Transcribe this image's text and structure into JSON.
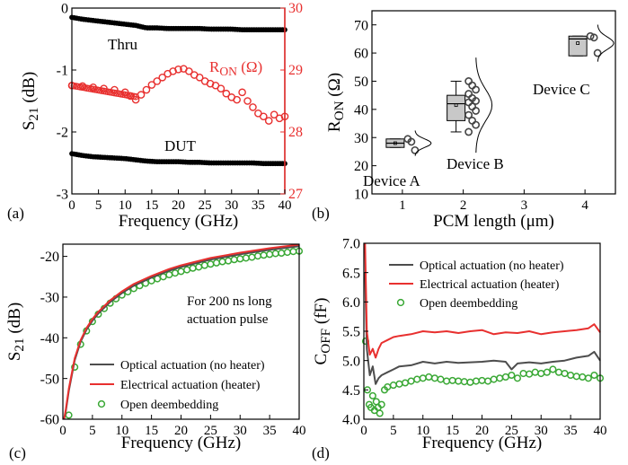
{
  "figure_colors": {
    "black": "#000000",
    "red": "#e8302f",
    "gray": "#4d4d4d",
    "green": "#3aa835",
    "box_fill": "#c8c8c8"
  },
  "chart_data": [
    {
      "panel": "(a)",
      "type": "scatter",
      "xlabel": "Frequency (GHz)",
      "ylabel": "S21 (dB)",
      "y2label": "RON (Ω)",
      "xlim": [
        0,
        40
      ],
      "ylim": [
        -3,
        0
      ],
      "y2lim": [
        27,
        30
      ],
      "xticks": [
        0,
        5,
        10,
        15,
        20,
        25,
        30,
        35,
        40
      ],
      "yticks": [
        0,
        -1,
        -2,
        -3
      ],
      "y2ticks": [
        27,
        28,
        29,
        30
      ],
      "annotations": [
        "Thru",
        "DUT"
      ],
      "series": [
        {
          "name": "Thru",
          "axis": "left",
          "color": "#000000",
          "x": [
            0,
            2,
            4,
            6,
            8,
            10,
            12,
            13,
            14,
            16,
            18,
            20,
            22,
            24,
            26,
            28,
            30,
            32,
            34,
            36,
            38,
            40
          ],
          "y": [
            -0.15,
            -0.18,
            -0.2,
            -0.22,
            -0.24,
            -0.26,
            -0.28,
            -0.3,
            -0.32,
            -0.32,
            -0.33,
            -0.33,
            -0.33,
            -0.33,
            -0.34,
            -0.34,
            -0.34,
            -0.35,
            -0.35,
            -0.35,
            -0.35,
            -0.35
          ]
        },
        {
          "name": "DUT",
          "axis": "left",
          "color": "#000000",
          "x": [
            0,
            2,
            4,
            6,
            8,
            10,
            12,
            14,
            16,
            18,
            20,
            22,
            24,
            26,
            28,
            30,
            32,
            34,
            36,
            38,
            40
          ],
          "y": [
            -2.35,
            -2.38,
            -2.4,
            -2.41,
            -2.42,
            -2.43,
            -2.45,
            -2.47,
            -2.48,
            -2.48,
            -2.48,
            -2.49,
            -2.49,
            -2.5,
            -2.5,
            -2.5,
            -2.5,
            -2.5,
            -2.51,
            -2.51,
            -2.51
          ]
        },
        {
          "name": "RON",
          "axis": "right",
          "color": "#e8302f",
          "x": [
            0,
            2,
            4,
            6,
            8,
            10,
            11,
            12,
            13,
            14,
            15,
            16,
            17,
            18,
            19,
            20,
            21,
            22,
            23,
            24,
            25,
            26,
            27,
            28,
            29,
            30,
            31,
            32,
            33,
            34,
            35,
            36,
            37,
            38,
            39,
            40
          ],
          "y": [
            28.75,
            28.74,
            28.72,
            28.7,
            28.68,
            28.64,
            28.58,
            28.52,
            28.6,
            28.68,
            28.76,
            28.82,
            28.88,
            28.94,
            28.98,
            29.01,
            29.02,
            28.98,
            28.92,
            28.88,
            28.82,
            28.78,
            28.75,
            28.7,
            28.62,
            28.56,
            28.52,
            28.64,
            28.5,
            28.4,
            28.3,
            28.25,
            28.18,
            28.28,
            28.22,
            28.25
          ]
        }
      ],
      "y2label_color": "#e8302f"
    },
    {
      "panel": "(b)",
      "type": "box",
      "xlabel": "PCM length (μm)",
      "ylabel": "RON (Ω)",
      "xlim": [
        0.5,
        4.5
      ],
      "ylim": [
        10,
        75
      ],
      "xticks": [
        1,
        2,
        3,
        4
      ],
      "yticks": [
        10,
        20,
        30,
        40,
        50,
        60,
        70
      ],
      "groups": [
        {
          "name": "Device A",
          "x": 1,
          "q1": 26.5,
          "median": 28,
          "q3": 29.5,
          "mean": 28,
          "whisker_low": 26.5,
          "whisker_high": 29.5,
          "points": [
            29.5,
            28.5,
            25.5
          ]
        },
        {
          "name": "Device B",
          "x": 2,
          "q1": 36,
          "median": 42,
          "q3": 45,
          "mean": 41.5,
          "whisker_low": 32,
          "whisker_high": 50,
          "points": [
            50,
            48.5,
            47,
            45.5,
            44,
            43,
            42.5,
            41,
            39.5,
            38,
            36,
            34.5,
            32
          ]
        },
        {
          "name": "Device C",
          "x": 4,
          "q1": 59,
          "median": 65,
          "q3": 66,
          "mean": 63.5,
          "whisker_low": 59,
          "whisker_high": 66,
          "points": [
            66,
            65.5,
            60
          ]
        }
      ]
    },
    {
      "panel": "(c)",
      "type": "line",
      "xlabel": "Frequency (GHz)",
      "ylabel": "S21 (dB)",
      "xlim": [
        0,
        40
      ],
      "ylim": [
        -60,
        -17
      ],
      "xticks": [
        0,
        5,
        10,
        15,
        20,
        25,
        30,
        35,
        40
      ],
      "yticks": [
        -20,
        -30,
        -40,
        -50,
        -60
      ],
      "annotation": [
        "For 200 ns long",
        "actuation pulse"
      ],
      "series": [
        {
          "name": "Optical actuation (no heater)",
          "style": "line",
          "color": "#4d4d4d",
          "x": [
            0.2,
            0.5,
            1,
            2,
            3,
            4,
            5,
            6,
            8,
            10,
            12,
            15,
            18,
            20,
            25,
            30,
            35,
            40
          ],
          "y": [
            -60,
            -58,
            -53,
            -45.5,
            -41,
            -38,
            -35.8,
            -34,
            -31.2,
            -29,
            -27.2,
            -25.2,
            -23.5,
            -22.6,
            -20.8,
            -19.5,
            -18.4,
            -17.5
          ]
        },
        {
          "name": "Electrical actuation (heater)",
          "style": "line",
          "color": "#e8302f",
          "x": [
            0.2,
            0.5,
            1,
            2,
            3,
            4,
            5,
            6,
            8,
            10,
            12,
            15,
            18,
            20,
            25,
            30,
            35,
            40
          ],
          "y": [
            -60,
            -57.5,
            -52.5,
            -45,
            -40.6,
            -37.6,
            -35.4,
            -33.6,
            -30.8,
            -28.6,
            -26.8,
            -24.8,
            -23.1,
            -22.2,
            -20.4,
            -19.1,
            -18,
            -17.1
          ]
        },
        {
          "name": "Open deembedding",
          "style": "marker",
          "color": "#3aa835",
          "x": [
            1,
            2,
            3,
            4,
            5,
            6,
            7,
            8,
            9,
            10,
            11,
            12,
            13,
            14,
            15,
            16,
            17,
            18,
            19,
            20,
            21,
            22,
            23,
            24,
            25,
            26,
            27,
            28,
            29,
            30,
            31,
            32,
            33,
            34,
            35,
            36,
            37,
            38,
            39,
            40
          ],
          "y": [
            -59,
            -47.2,
            -41.6,
            -38.3,
            -36,
            -34.2,
            -32.8,
            -31.5,
            -30.4,
            -29.5,
            -28.7,
            -27.9,
            -27.2,
            -26.6,
            -26,
            -25.5,
            -25,
            -24.5,
            -24.1,
            -23.7,
            -23.3,
            -22.9,
            -22.6,
            -22.2,
            -21.9,
            -21.6,
            -21.3,
            -21.1,
            -20.8,
            -20.6,
            -20.4,
            -20.2,
            -19.9,
            -19.7,
            -19.5,
            -19.3,
            -19.2,
            -19,
            -18.8,
            -18.7
          ]
        }
      ]
    },
    {
      "panel": "(d)",
      "type": "line",
      "xlabel": "Frequency (GHz)",
      "ylabel": "COFF (fF)",
      "xlim": [
        0,
        40
      ],
      "ylim": [
        4,
        7
      ],
      "xticks": [
        0,
        5,
        10,
        15,
        20,
        25,
        30,
        35,
        40
      ],
      "yticks": [
        4.0,
        4.5,
        5.0,
        5.5,
        6.0,
        6.5,
        7.0
      ],
      "series": [
        {
          "name": "Optical actuation (no heater)",
          "style": "line",
          "color": "#4d4d4d",
          "x": [
            0.2,
            0.5,
            1,
            1.5,
            2,
            2.5,
            3,
            4,
            5,
            6,
            8,
            10,
            12,
            14,
            16,
            18,
            20,
            22,
            24,
            25,
            26,
            28,
            30,
            32,
            34,
            36,
            38,
            39,
            40
          ],
          "y": [
            6.5,
            5.2,
            4.75,
            4.9,
            4.6,
            4.7,
            4.75,
            4.8,
            4.85,
            4.9,
            4.92,
            4.98,
            4.95,
            4.98,
            4.96,
            4.97,
            4.98,
            5.0,
            4.98,
            4.85,
            4.95,
            4.97,
            4.95,
            4.98,
            5.0,
            5.05,
            5.08,
            5.15,
            5.0
          ]
        },
        {
          "name": "Electrical actuation (heater)",
          "style": "line",
          "color": "#e8302f",
          "x": [
            0.2,
            0.5,
            1,
            1.5,
            2,
            2.5,
            3,
            4,
            5,
            6,
            8,
            10,
            12,
            14,
            16,
            18,
            20,
            22,
            24,
            26,
            28,
            30,
            32,
            34,
            36,
            38,
            39,
            40
          ],
          "y": [
            7.0,
            5.5,
            5.1,
            5.2,
            5.05,
            5.2,
            5.3,
            5.35,
            5.4,
            5.42,
            5.45,
            5.5,
            5.48,
            5.5,
            5.47,
            5.5,
            5.52,
            5.45,
            5.48,
            5.47,
            5.5,
            5.45,
            5.48,
            5.5,
            5.52,
            5.55,
            5.62,
            5.48
          ]
        },
        {
          "name": "Open deembedding",
          "style": "marker",
          "color": "#3aa835",
          "x": [
            0.3,
            0.6,
            0.9,
            1.2,
            1.5,
            1.8,
            2.1,
            2.4,
            2.7,
            3,
            3.5,
            4,
            5,
            6,
            7,
            8,
            9,
            10,
            11,
            12,
            13,
            14,
            15,
            16,
            17,
            18,
            19,
            20,
            21,
            22,
            23,
            24,
            25,
            26,
            27,
            28,
            29,
            30,
            31,
            32,
            33,
            34,
            35,
            36,
            37,
            38,
            39,
            40
          ],
          "y": [
            5.33,
            4.5,
            4.25,
            4.2,
            4.4,
            4.15,
            4.3,
            4.2,
            4.1,
            4.25,
            4.5,
            4.55,
            4.58,
            4.6,
            4.62,
            4.65,
            4.68,
            4.7,
            4.72,
            4.7,
            4.68,
            4.65,
            4.66,
            4.65,
            4.64,
            4.63,
            4.65,
            4.66,
            4.65,
            4.68,
            4.7,
            4.72,
            4.75,
            4.7,
            4.78,
            4.77,
            4.8,
            4.78,
            4.8,
            4.85,
            4.8,
            4.78,
            4.75,
            4.73,
            4.72,
            4.7,
            4.75,
            4.7
          ]
        }
      ]
    }
  ]
}
